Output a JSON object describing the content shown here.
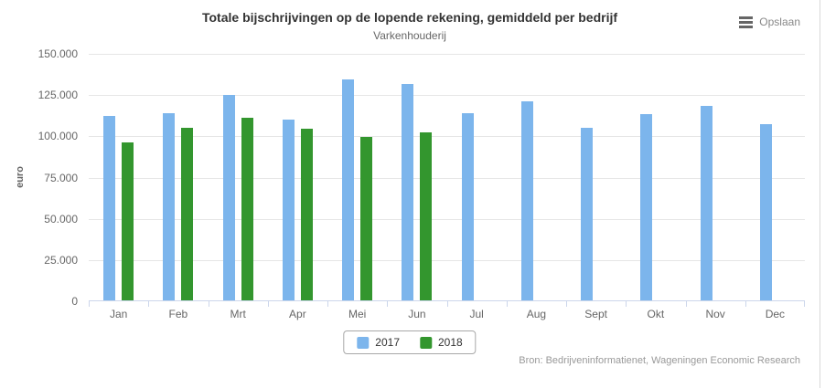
{
  "header": {
    "title": "Totale bijschrijvingen op de lopende rekening, gemiddeld per bedrijf",
    "subtitle": "Varkenhouderij"
  },
  "export": {
    "label": "Opslaan",
    "icon": "hamburger-menu-icon"
  },
  "source": "Bron: Bedrijveninformatienet, Wageningen Economic Research",
  "chart_data": {
    "type": "bar",
    "title": "Totale bijschrijvingen op de lopende rekening, gemiddeld per bedrijf",
    "subtitle": "Varkenhouderij",
    "xlabel": "",
    "ylabel": "euro",
    "categories": [
      "Jan",
      "Feb",
      "Mrt",
      "Apr",
      "Mei",
      "Jun",
      "Jul",
      "Aug",
      "Sept",
      "Okt",
      "Nov",
      "Dec"
    ],
    "series": [
      {
        "name": "2017",
        "color": "#7cb5ec",
        "values": [
          112000,
          113500,
          124500,
          109500,
          134000,
          131000,
          113500,
          120500,
          104500,
          113000,
          118000,
          107000
        ]
      },
      {
        "name": "2018",
        "color": "#33962e",
        "values": [
          95500,
          104500,
          110500,
          104000,
          99000,
          102000,
          null,
          null,
          null,
          null,
          null,
          null
        ]
      }
    ],
    "ylim": [
      0,
      150000
    ],
    "yticks": [
      {
        "value": 0,
        "label": "0"
      },
      {
        "value": 25000,
        "label": "25.000"
      },
      {
        "value": 50000,
        "label": "50.000"
      },
      {
        "value": 75000,
        "label": "75.000"
      },
      {
        "value": 100000,
        "label": "100.000"
      },
      {
        "value": 125000,
        "label": "125.000"
      },
      {
        "value": 150000,
        "label": "150.000"
      }
    ],
    "grid": true,
    "legend_position": "bottom-center"
  }
}
